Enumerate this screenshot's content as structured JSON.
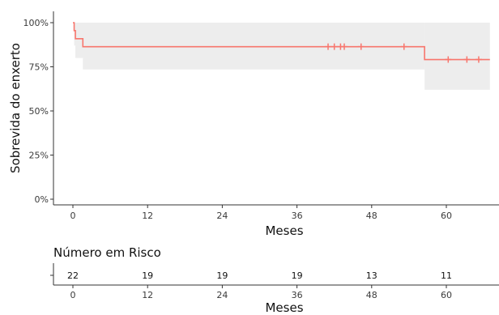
{
  "chart_data": {
    "type": "line",
    "subtype": "kaplan-meier",
    "title": "",
    "xlabel": "Meses",
    "ylabel": "Sobrevida do enxerto",
    "xlim": [
      -4,
      68
    ],
    "ylim": [
      -0.02,
      1.02
    ],
    "x_ticks": [
      0,
      12,
      24,
      36,
      48,
      60
    ],
    "x_tick_labels": [
      "0",
      "12",
      "24",
      "36",
      "48",
      "60"
    ],
    "y_ticks": [
      0,
      0.25,
      0.5,
      0.75,
      1.0
    ],
    "y_tick_labels": [
      "0%",
      "25%",
      "50%",
      "75%",
      "100%"
    ],
    "grid": false,
    "series": [
      {
        "color": "#f8766d",
        "step": [
          [
            0,
            1.0
          ],
          [
            0.2,
            0.955
          ],
          [
            0.4,
            0.909
          ],
          [
            1.6,
            0.864
          ],
          [
            56.5,
            0.791
          ],
          [
            67,
            0.791
          ]
        ],
        "ci_band": [
          {
            "from": 0,
            "to": 0.2,
            "lower": 1.0,
            "upper": 1.0
          },
          {
            "from": 0.2,
            "to": 0.4,
            "lower": 0.87,
            "upper": 1.0
          },
          {
            "from": 0.4,
            "to": 1.6,
            "lower": 0.8,
            "upper": 1.0
          },
          {
            "from": 1.6,
            "to": 56.5,
            "lower": 0.735,
            "upper": 1.0
          },
          {
            "from": 56.5,
            "to": 67,
            "lower": 0.62,
            "upper": 1.0
          }
        ],
        "censor_x": [
          41,
          42,
          43,
          43.6,
          46.3,
          53.2,
          60.3,
          63.3,
          65.2
        ]
      }
    ],
    "risk_table": {
      "title": "Número em Risco",
      "times": [
        0,
        12,
        24,
        36,
        48,
        60
      ],
      "counts": [
        "22",
        "19",
        "19",
        "19",
        "13",
        "11"
      ],
      "xlabel": "Meses",
      "x_tick_labels": [
        "0",
        "12",
        "24",
        "36",
        "48",
        "60"
      ]
    }
  }
}
